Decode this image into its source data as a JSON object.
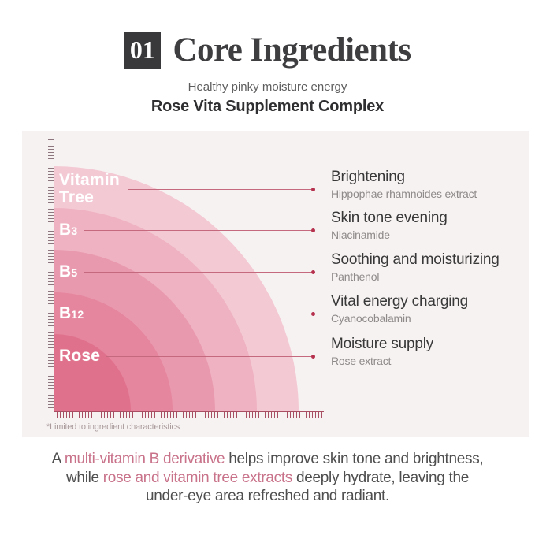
{
  "header": {
    "number": "01",
    "title": "Core Ingredients",
    "tagline": "Healthy pinky moisture energy",
    "subtitle": "Rose Vita Supplement Complex"
  },
  "rings": [
    {
      "label_main": "Vitamin Tree",
      "label_sub": "",
      "radius": 311,
      "color": "#f3c9d4",
      "benefit": "Brightening",
      "ingredient": "Hippophae rhamnoides extract"
    },
    {
      "label_main": "B",
      "label_sub": "3",
      "radius": 258,
      "color": "#efb2c2",
      "benefit": "Skin tone evening",
      "ingredient": "Niacinamide"
    },
    {
      "label_main": "B",
      "label_sub": "5",
      "radius": 205,
      "color": "#e999ae",
      "benefit": "Soothing and moisturizing",
      "ingredient": "Panthenol"
    },
    {
      "label_main": "B",
      "label_sub": "12",
      "radius": 151,
      "color": "#e5859e",
      "benefit": "Vital energy charging",
      "ingredient": "Cyanocobalamin"
    },
    {
      "label_main": "Rose",
      "label_sub": "",
      "radius": 98,
      "color": "#e0718c",
      "benefit": "Moisture supply",
      "ingredient": "Rose extract"
    }
  ],
  "footnote": "*Limited to ingredient characteristics",
  "description": {
    "segments": [
      {
        "text": "A ",
        "accent": false
      },
      {
        "text": "multi-vitamin B derivative",
        "accent": true
      },
      {
        "text": " helps improve skin tone and brightness,",
        "accent": false,
        "break_after": true
      },
      {
        "text": "while ",
        "accent": false
      },
      {
        "text": "rose and vitamin tree extracts",
        "accent": true
      },
      {
        "text": " deeply hydrate, leaving the",
        "accent": false,
        "break_after": true
      },
      {
        "text": "under-eye area refreshed and radiant.",
        "accent": false
      }
    ]
  },
  "colors": {
    "panel_background": "#f7f2f2",
    "accent_text": "#c9738b",
    "leader_line": "#c4697e",
    "leader_dot": "#b5314e",
    "number_box": "#39393b"
  }
}
